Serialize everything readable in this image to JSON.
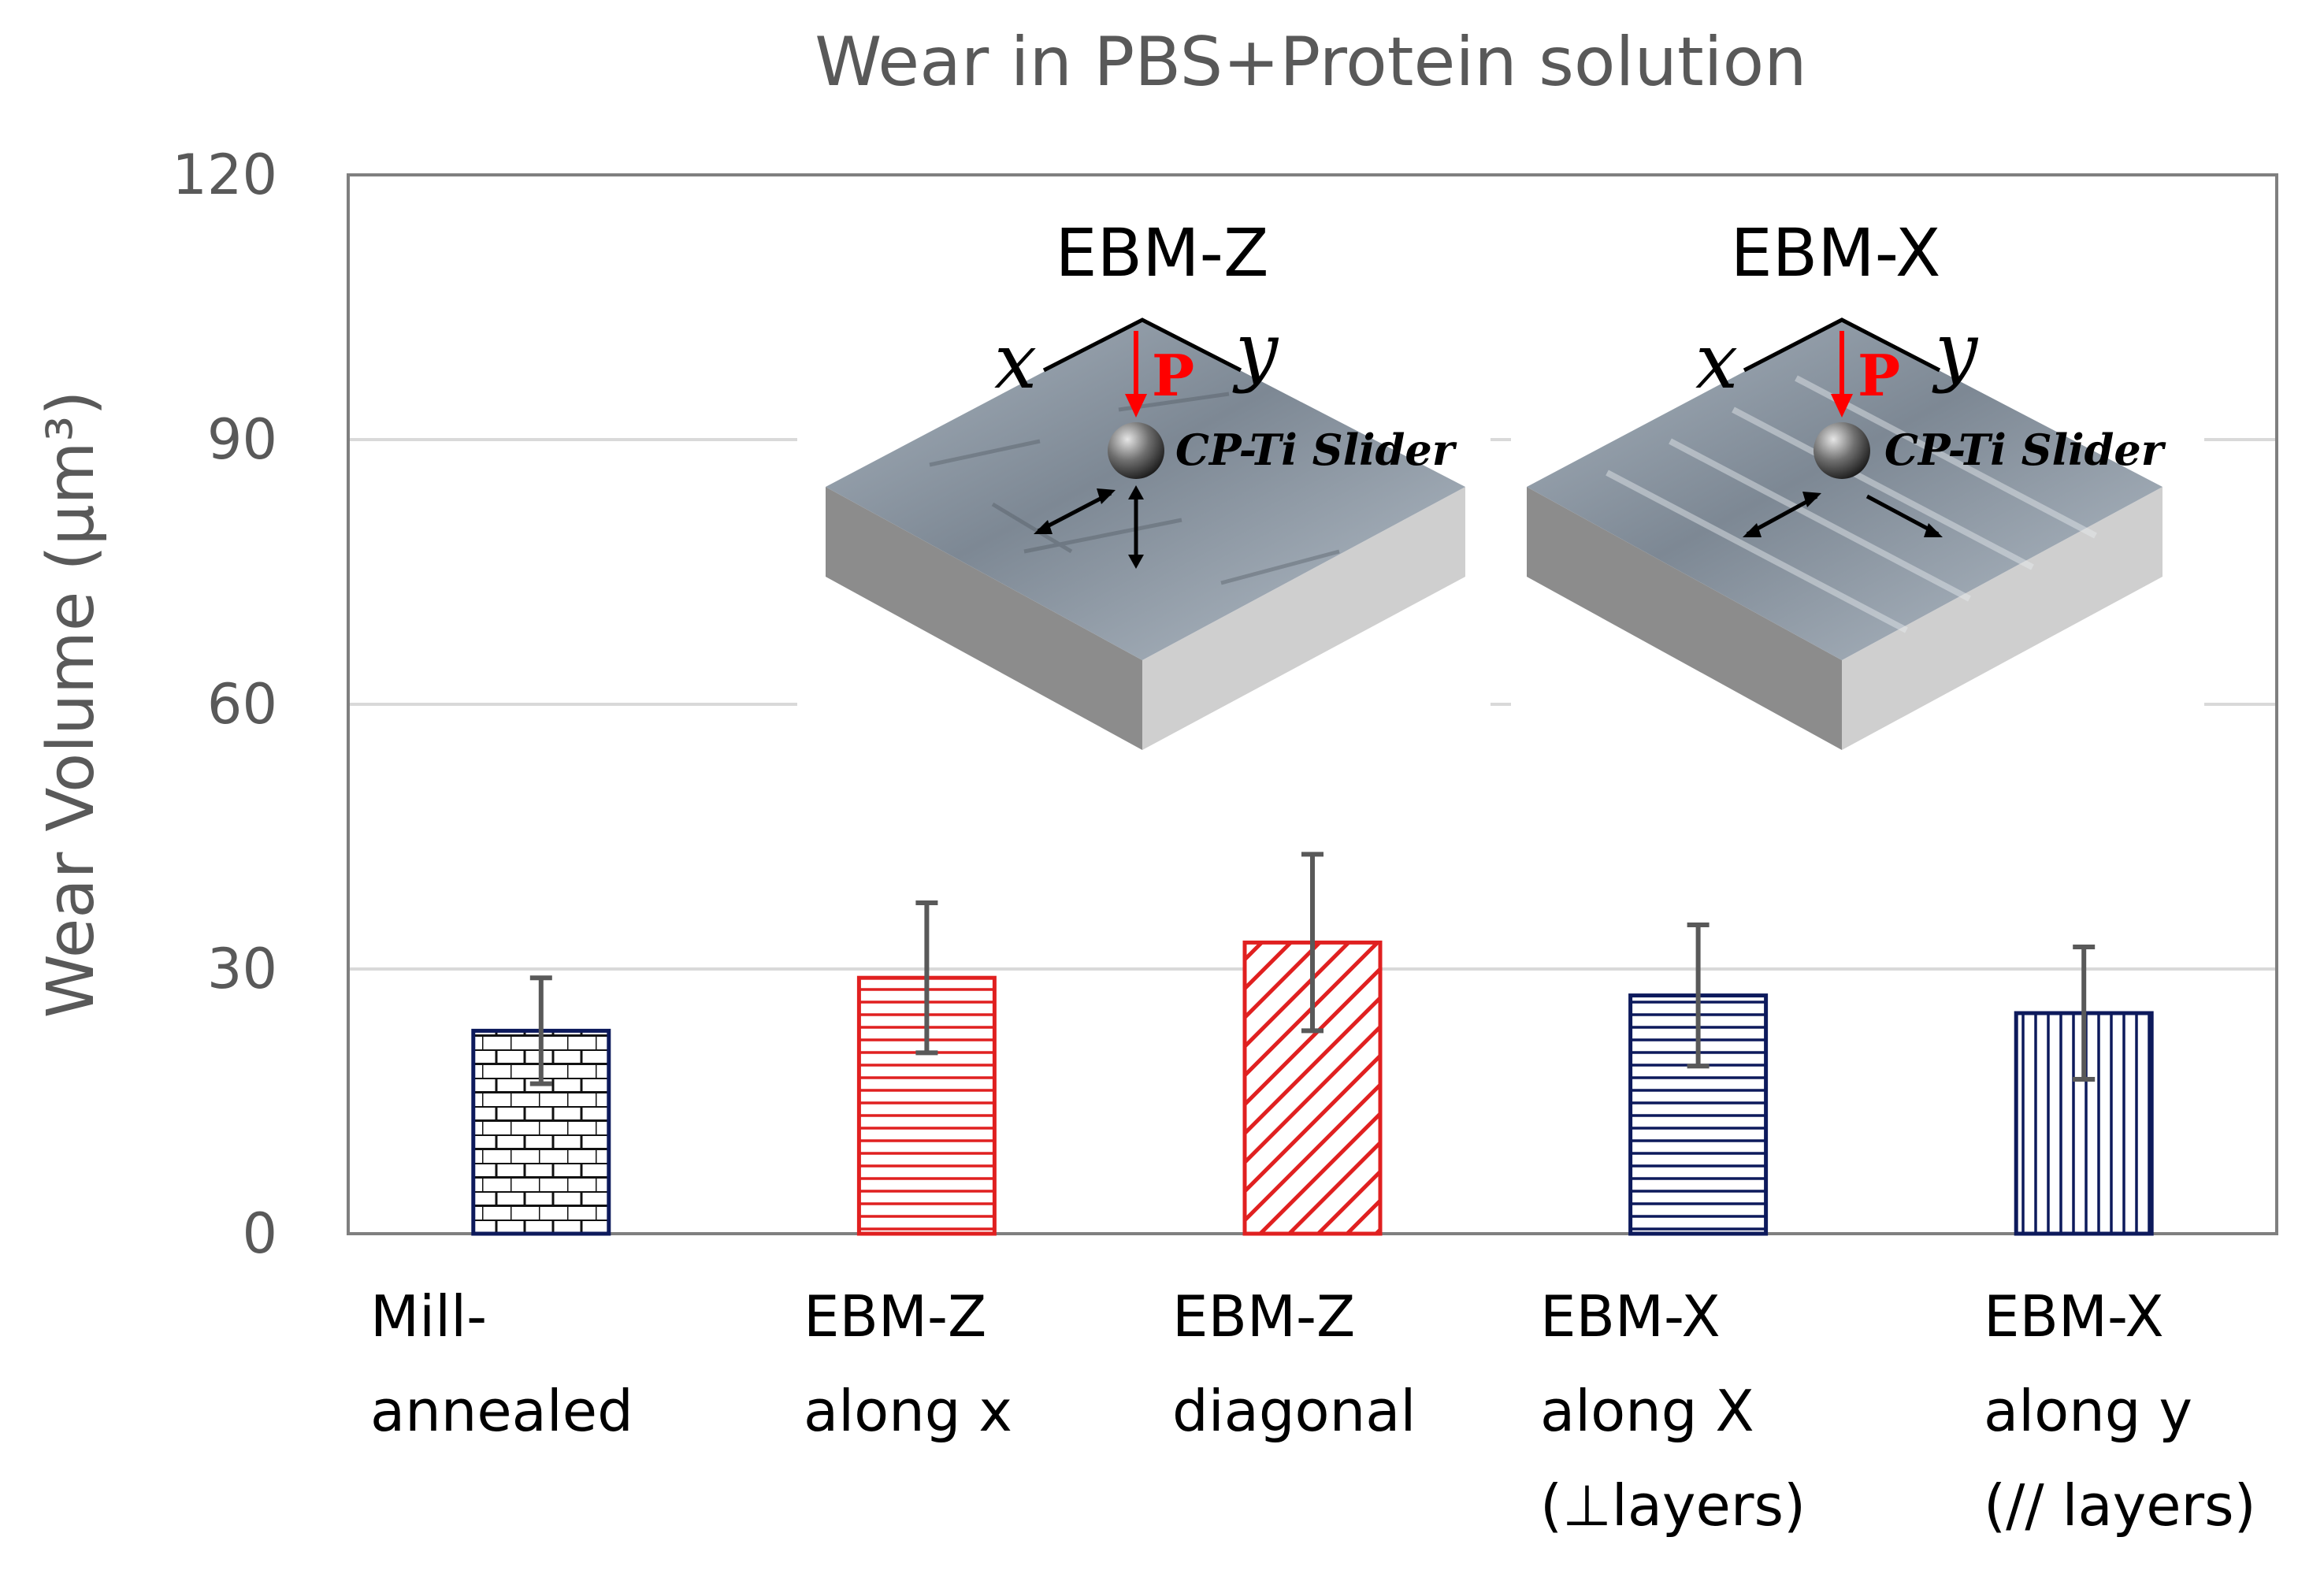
{
  "chart_data": {
    "type": "bar",
    "title": "Wear in PBS+Protein solution",
    "ylabel": "Wear Volume (μm³)",
    "xlabel": "",
    "ylim": [
      0,
      120
    ],
    "yticks": [
      "0",
      "30",
      "60",
      "90",
      "120"
    ],
    "grid": true,
    "categories": [
      [
        "Mill-",
        "annealed"
      ],
      [
        "EBM-Z",
        "along x"
      ],
      [
        "EBM-Z",
        "diagonal"
      ],
      [
        "EBM-X",
        "along X",
        "(⊥layers)"
      ],
      [
        "EBM-X",
        "along y",
        "(// layers)"
      ]
    ],
    "values": [
      23,
      29,
      33,
      27,
      25
    ],
    "error": [
      6,
      8.5,
      10,
      8,
      7.5
    ],
    "patterns": [
      "brick",
      "horizontal",
      "diagonal",
      "horizontal",
      "vertical"
    ],
    "bar_colors": [
      "#0d1a5c",
      "#e02020",
      "#e02020",
      "#0d1a5c",
      "#0d1a5c"
    ],
    "insets": [
      {
        "title": "EBM-Z",
        "axis_x": "x",
        "axis_y": "y",
        "load": "P",
        "slider": "CP-Ti Slider"
      },
      {
        "title": "EBM-X",
        "axis_x": "x",
        "axis_y": "y",
        "load": "P",
        "slider": "CP-Ti Slider"
      }
    ],
    "colors": {
      "axis_text": "#595959",
      "grid": "#d9d9d9",
      "frame": "#7f7f7f",
      "error_bar": "#595959",
      "load_arrow": "#ff0000"
    }
  }
}
